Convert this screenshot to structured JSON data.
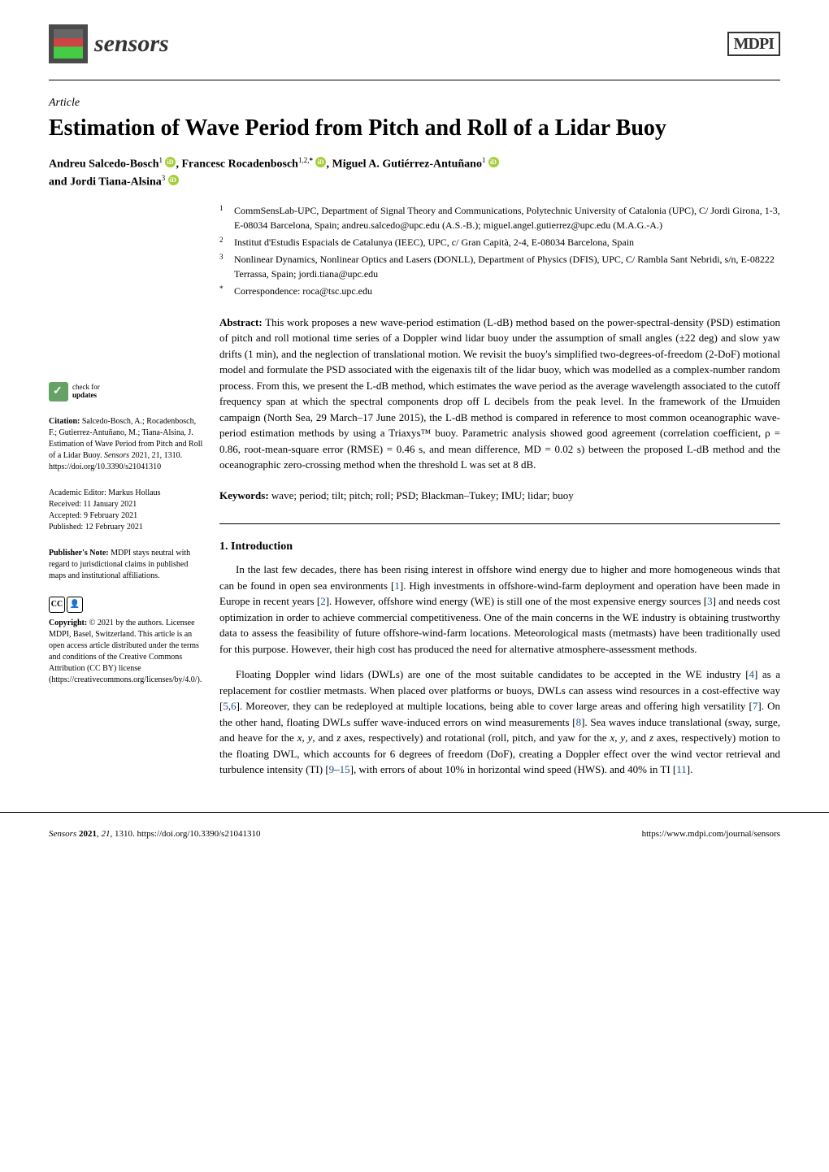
{
  "header": {
    "journal_name": "sensors",
    "publisher": "MDPI"
  },
  "article": {
    "type": "Article",
    "title": "Estimation of Wave Period from Pitch and Roll of a Lidar Buoy",
    "authors_line1": "Andreu Salcedo-Bosch",
    "authors_sup1": "1",
    "authors_sep1": ", Francesc Rocadenbosch",
    "authors_sup2": "1,2,",
    "authors_star": "*",
    "authors_sep2": ", Miguel A. Gutiérrez-Antuñano",
    "authors_sup3": "1",
    "authors_line2": "and Jordi Tiana-Alsina",
    "authors_sup4": "3"
  },
  "affiliations": {
    "a1_sup": "1",
    "a1": "CommSensLab-UPC, Department of Signal Theory and Communications, Polytechnic University of Catalonia (UPC), C/ Jordi Girona, 1-3, E-08034 Barcelona, Spain; andreu.salcedo@upc.edu (A.S.-B.); miguel.angel.gutierrez@upc.edu (M.A.G.-A.)",
    "a2_sup": "2",
    "a2": "Institut d'Estudis Espacials de Catalunya (IEEC), UPC, c/ Gran Capità, 2-4, E-08034 Barcelona, Spain",
    "a3_sup": "3",
    "a3": "Nonlinear Dynamics, Nonlinear Optics and Lasers (DONLL), Department of Physics (DFIS), UPC, C/ Rambla Sant Nebridi, s/n, E-08222 Terrassa, Spain; jordi.tiana@upc.edu",
    "corr_sup": "*",
    "corr": "Correspondence: roca@tsc.upc.edu"
  },
  "abstract": {
    "label": "Abstract:",
    "text": " This work proposes a new wave-period estimation (L-dB) method based on the power-spectral-density (PSD) estimation of pitch and roll motional time series of a Doppler wind lidar buoy under the assumption of small angles (±22 deg) and slow yaw drifts (1 min), and the neglection of translational motion. We revisit the buoy's simplified two-degrees-of-freedom (2-DoF) motional model and formulate the PSD associated with the eigenaxis tilt of the lidar buoy, which was modelled as a complex-number random process. From this, we present the L-dB method, which estimates the wave period as the average wavelength associated to the cutoff frequency span at which the spectral components drop off L decibels from the peak level. In the framework of the IJmuiden campaign (North Sea, 29 March–17 June 2015), the L-dB method is compared in reference to most common oceanographic wave-period estimation methods by using a Triaxys™ buoy. Parametric analysis showed good agreement (correlation coefficient, ρ = 0.86, root-mean-square error (RMSE) = 0.46 s, and mean difference, MD = 0.02 s) between the proposed L-dB method and the oceanographic zero-crossing method when the threshold L was set at 8 dB."
  },
  "keywords": {
    "label": "Keywords:",
    "text": " wave; period; tilt; pitch; roll; PSD; Blackman–Tukey; IMU; lidar; buoy"
  },
  "section1": {
    "title": "1. Introduction",
    "p1_a": "In the last few decades, there has been rising interest in offshore wind energy due to higher and more homogeneous winds that can be found in open sea environments [",
    "p1_r1": "1",
    "p1_b": "]. High investments in offshore-wind-farm deployment and operation have been made in Europe in recent years [",
    "p1_r2": "2",
    "p1_c": "]. However, offshore wind energy (WE) is still one of the most expensive energy sources [",
    "p1_r3": "3",
    "p1_d": "] and needs cost optimization in order to achieve commercial competitiveness. One of the main concerns in the WE industry is obtaining trustworthy data to assess the feasibility of future offshore-wind-farm locations. Meteorological masts (metmasts) have been traditionally used for this purpose. However, their high cost has produced the need for alternative atmosphere-assessment methods.",
    "p2_a": "Floating Doppler wind lidars (DWLs) are one of the most suitable candidates to be accepted in the WE industry [",
    "p2_r4": "4",
    "p2_b": "] as a replacement for costlier metmasts. When placed over platforms or buoys, DWLs can assess wind resources in a cost-effective way [",
    "p2_r5": "5",
    "p2_c": ",",
    "p2_r6": "6",
    "p2_d": "]. Moreover, they can be redeployed at multiple locations, being able to cover large areas and offering high versatility [",
    "p2_r7": "7",
    "p2_e": "]. On the other hand, floating DWLs suffer wave-induced errors on wind measurements [",
    "p2_r8": "8",
    "p2_f": "]. Sea waves induce translational (sway, surge, and heave for the ",
    "p2_g": "x",
    "p2_h": ", ",
    "p2_i": "y",
    "p2_j": ", and ",
    "p2_k": "z",
    "p2_l": " axes, respectively) and rotational (roll, pitch, and yaw for the ",
    "p2_m": "x",
    "p2_n": ", ",
    "p2_o": "y",
    "p2_p": ", and ",
    "p2_q": "z",
    "p2_r": " axes, respectively) motion to the floating DWL, which accounts for 6 degrees of freedom (DoF), creating a Doppler effect over the wind vector retrieval and turbulence intensity (TI) [",
    "p2_r9": "9",
    "p2_s": "–",
    "p2_r15": "15",
    "p2_t": "], with errors of about 10% in horizontal wind speed (HWS). and 40% in TI [",
    "p2_r11": "11",
    "p2_u": "]."
  },
  "sidebar": {
    "check_updates": "check for",
    "check_updates2": "updates",
    "citation_label": "Citation:",
    "citation": " Salcedo-Bosch, A.; Rocadenbosch, F.; Gutierrez-Antuñano, M.; Tiana-Alsina, J. Estimation of Wave Period from Pitch and Roll of a Lidar Buoy. ",
    "citation_journal": "Sensors",
    "citation_rest": " 2021, 21, 1310. https://doi.org/10.3390/s21041310",
    "editor": "Academic Editor: Markus Hollaus",
    "received": "Received: 11 January 2021",
    "accepted": "Accepted: 9 February 2021",
    "published": "Published: 12 February 2021",
    "note_label": "Publisher's Note:",
    "note": " MDPI stays neutral with regard to jurisdictional claims in published maps and institutional affiliations.",
    "cc_label": "CC",
    "by_label": "BY",
    "copyright_label": "Copyright:",
    "copyright": " © 2021 by the authors. Licensee MDPI, Basel, Switzerland. This article is an open access article distributed under the terms and conditions of the Creative Commons Attribution (CC BY) license (https://creativecommons.org/licenses/by/4.0/)."
  },
  "footer": {
    "left": "Sensors 2021, 21, 1310. https://doi.org/10.3390/s21041310",
    "right": "https://www.mdpi.com/journal/sensors"
  }
}
